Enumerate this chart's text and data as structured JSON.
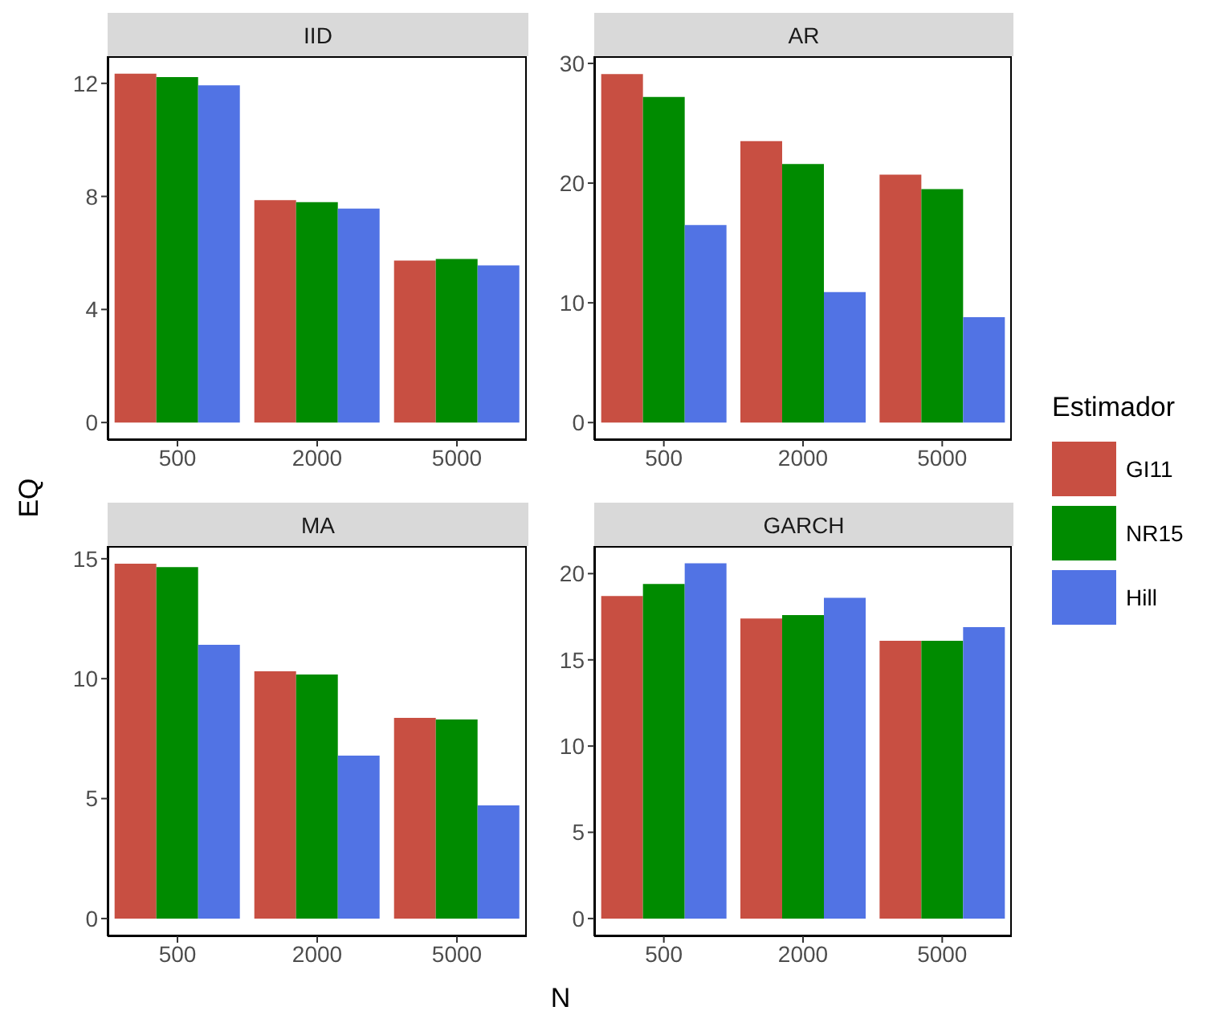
{
  "chart_data": [
    {
      "type": "bar",
      "title": "IID",
      "ylabel": "EQ",
      "categories": [
        "500",
        "2000",
        "5000"
      ],
      "ylim": [
        -0.62,
        12.96
      ],
      "yticks": [
        0,
        4,
        8,
        12
      ],
      "grid": false,
      "series": [
        {
          "color": "#c84f42",
          "values": [
            12.34,
            7.87,
            5.73
          ]
        },
        {
          "color": "#008b00",
          "values": [
            12.22,
            7.8,
            5.79
          ]
        },
        {
          "color": "#5173e4",
          "values": [
            11.93,
            7.57,
            5.56
          ]
        }
      ]
    },
    {
      "type": "bar",
      "title": "AR",
      "legend": "right",
      "legend_title": "Estimador",
      "categories": [
        "500",
        "2000",
        "5000"
      ],
      "ylim": [
        -1.46,
        30.6
      ],
      "yticks": [
        0,
        10,
        20,
        30
      ],
      "grid": false,
      "series": [
        {
          "name": "GI11",
          "color": "#c84f42",
          "values": [
            29.1,
            23.5,
            20.7
          ]
        },
        {
          "name": "NR15",
          "color": "#008b00",
          "values": [
            27.2,
            21.6,
            19.5
          ]
        },
        {
          "name": "Hill",
          "color": "#5173e4",
          "values": [
            16.5,
            10.9,
            8.8
          ]
        }
      ]
    },
    {
      "type": "bar",
      "title": "MA",
      "xlabel": "N",
      "categories": [
        "500",
        "2000",
        "5000"
      ],
      "ylim": [
        -0.74,
        15.53
      ],
      "yticks": [
        0,
        5,
        10,
        15
      ],
      "grid": false,
      "series": [
        {
          "color": "#c84f42",
          "values": [
            14.79,
            10.31,
            8.37
          ]
        },
        {
          "color": "#008b00",
          "values": [
            14.65,
            10.17,
            8.3
          ]
        },
        {
          "color": "#5173e4",
          "values": [
            11.41,
            6.79,
            4.72
          ]
        }
      ]
    },
    {
      "type": "bar",
      "title": "GARCH",
      "categories": [
        "500",
        "2000",
        "5000"
      ],
      "ylim": [
        -1.03,
        21.6
      ],
      "yticks": [
        0,
        5,
        10,
        15,
        20
      ],
      "grid": false,
      "series": [
        {
          "color": "#c84f42",
          "values": [
            18.7,
            17.4,
            16.1
          ]
        },
        {
          "color": "#008b00",
          "values": [
            19.4,
            17.6,
            16.1
          ]
        },
        {
          "color": "#5173e4",
          "values": [
            20.6,
            18.6,
            16.9
          ]
        }
      ]
    }
  ]
}
